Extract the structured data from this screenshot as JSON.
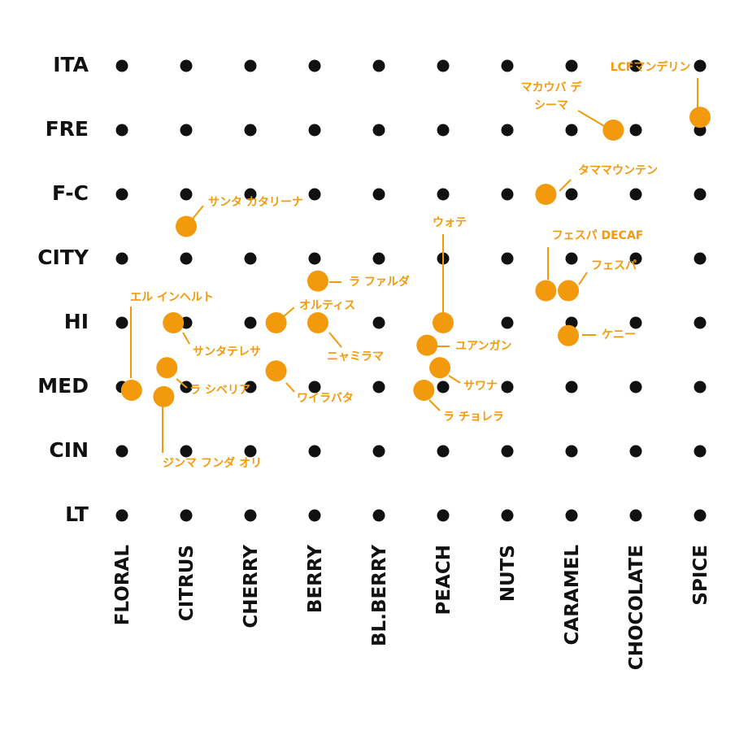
{
  "chart_data": {
    "type": "scatter",
    "title": "",
    "xlabel": "",
    "ylabel": "",
    "x_categories": [
      "FLORAL",
      "CITRUS",
      "CHERRY",
      "BERRY",
      "BL.BERRY",
      "PEACH",
      "NUTS",
      "CARAMEL",
      "CHOCOLATE",
      "SPICE"
    ],
    "y_categories": [
      "ITA",
      "FRE",
      "F-C",
      "CITY",
      "HI",
      "MED",
      "CIN",
      "LT"
    ],
    "grid_dots": true,
    "colors": {
      "point": "#f29a0b",
      "label": "#f29a0b",
      "grid": "#111111",
      "text": "#111111"
    },
    "points": [
      {
        "name": "LCFマンデリン",
        "x": 10.0,
        "y": 1.8
      },
      {
        "name": "マカウバ デ シーマ",
        "lines": [
          "マカウバ デ",
          "シーマ"
        ],
        "x": 8.65,
        "y": 2.0
      },
      {
        "name": "タママウンテン",
        "x": 7.6,
        "y": 3.0
      },
      {
        "name": "サンタ カタリーナ",
        "x": 2.0,
        "y": 3.5
      },
      {
        "name": "ウォテ",
        "x": 6.0,
        "y": 5.0
      },
      {
        "name": "フェスパ DECAF",
        "x": 7.6,
        "y": 4.5
      },
      {
        "name": "フェスパ",
        "x": 7.95,
        "y": 4.5
      },
      {
        "name": "ラ ファルダ",
        "x": 4.05,
        "y": 4.35
      },
      {
        "name": "エル インヘルト",
        "x": 1.15,
        "y": 6.05
      },
      {
        "name": "オルティス",
        "x": 3.4,
        "y": 5.0
      },
      {
        "name": "サンタテレサ",
        "x": 1.8,
        "y": 5.0
      },
      {
        "name": "ニャミラマ",
        "x": 4.05,
        "y": 5.0
      },
      {
        "name": "ユアンガン",
        "x": 5.75,
        "y": 5.35
      },
      {
        "name": "ケニー",
        "x": 7.95,
        "y": 5.2
      },
      {
        "name": "ラ シベリア",
        "x": 1.7,
        "y": 5.7
      },
      {
        "name": "ワイラバタ",
        "x": 3.4,
        "y": 5.75
      },
      {
        "name": "サワナ",
        "x": 5.95,
        "y": 5.7
      },
      {
        "name": "ラ チョレラ",
        "x": 5.7,
        "y": 6.05
      },
      {
        "name": "ジンマ フンダ オリ",
        "x": 1.65,
        "y": 6.15
      }
    ]
  }
}
